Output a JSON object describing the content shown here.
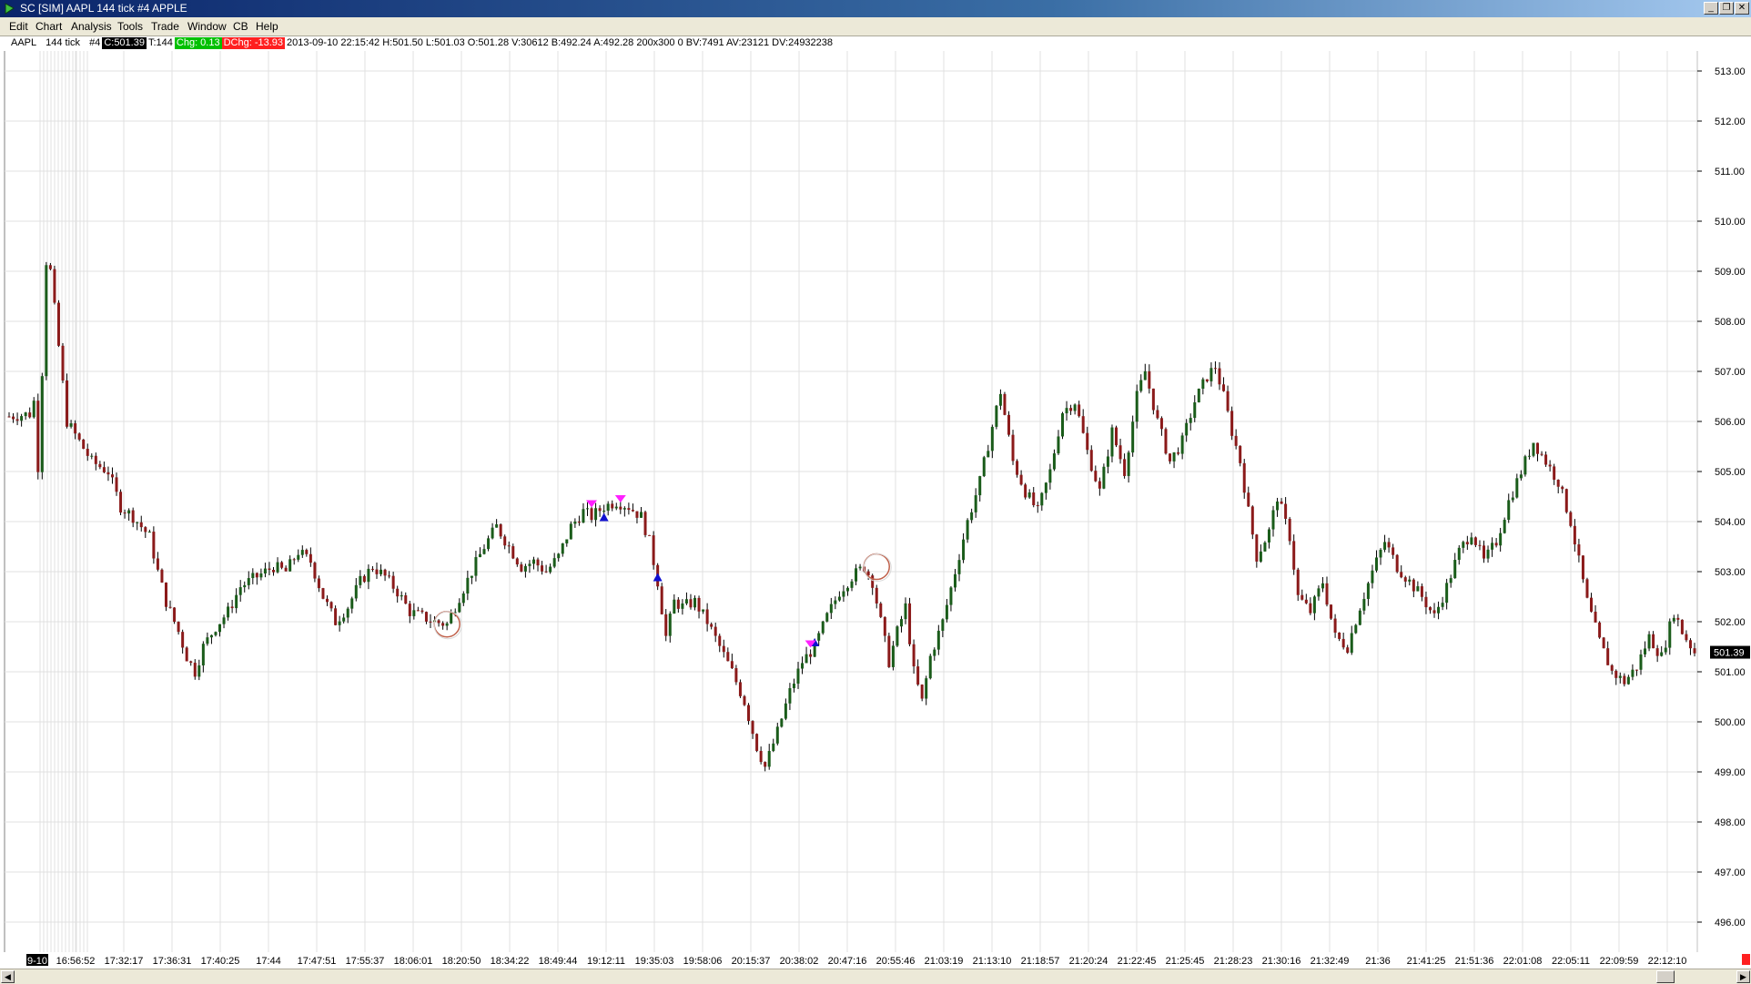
{
  "window": {
    "title": "SC [SIM] AAPL  144 tick  #4  APPLE",
    "controls": {
      "minimize": "_",
      "restore": "❐",
      "close": "✕"
    }
  },
  "menu": [
    "Edit",
    "Chart",
    "Analysis",
    "Tools",
    "Trade",
    "Window",
    "CB",
    "Help"
  ],
  "infobar": {
    "symbol": "AAPL",
    "interval": "144 tick",
    "chart_number": "#4",
    "close": "C:501.39",
    "ticks": "T:144",
    "change": "Chg: 0.13",
    "daily_change": "DChg: -13.93",
    "details": "2013-09-10 22:15:42 H:501.50 L:501.03 O:501.28 V:30612 B:492.24 A:492.28 200x300 0 BV:7491 AV:23121 DV:24932238"
  },
  "colors": {
    "up_bar": "#1a5c1a",
    "down_bar": "#8b1a1a",
    "grid": "#e0e0e0",
    "last_price_bg": "#000000",
    "buy_marker": "#1010d0",
    "sell_marker": "#ff20ff",
    "circle_marker": "#c0604a"
  },
  "chart_data": {
    "type": "candlestick",
    "title": "",
    "ylim": [
      495.4,
      513.4
    ],
    "y_ticks": [
      "513.00",
      "512.00",
      "511.00",
      "510.00",
      "509.00",
      "508.00",
      "507.00",
      "506.00",
      "505.00",
      "504.00",
      "503.00",
      "502.00",
      "501.00",
      "500.00",
      "499.00",
      "498.00",
      "497.00",
      "496.00"
    ],
    "last_price": "501.39",
    "x_first_label": "9-10",
    "x_ticks": [
      "16:56:52",
      "17:32:17",
      "17:36:31",
      "17:40:25",
      "17:44",
      "17:47:51",
      "17:55:37",
      "18:06:01",
      "18:20:50",
      "18:34:22",
      "18:49:44",
      "19:12:11",
      "19:35:03",
      "19:58:06",
      "20:15:37",
      "20:38:02",
      "20:47:16",
      "20:55:46",
      "21:03:19",
      "21:13:10",
      "21:18:57",
      "21:20:24",
      "21:22:45",
      "21:25:45",
      "21:28:23",
      "21:30:16",
      "21:32:49",
      "21:36",
      "21:41:25",
      "21:51:36",
      "22:01:08",
      "22:05:11",
      "22:09:59",
      "22:12:10"
    ],
    "price_path": [
      [
        0,
        506.1
      ],
      [
        5,
        506.15
      ],
      [
        6,
        506.4
      ],
      [
        7,
        505.1
      ],
      [
        8,
        507.0
      ],
      [
        9,
        509.2
      ],
      [
        10,
        509.0
      ],
      [
        12,
        507.5
      ],
      [
        14,
        506.0
      ],
      [
        17,
        505.6
      ],
      [
        20,
        505.2
      ],
      [
        24,
        505.0
      ],
      [
        27,
        504.3
      ],
      [
        30,
        504.1
      ],
      [
        34,
        503.7
      ],
      [
        36,
        503.0
      ],
      [
        38,
        502.4
      ],
      [
        41,
        501.8
      ],
      [
        43,
        501.3
      ],
      [
        45,
        501.0
      ],
      [
        47,
        501.5
      ],
      [
        50,
        501.9
      ],
      [
        53,
        502.2
      ],
      [
        56,
        502.7
      ],
      [
        60,
        502.9
      ],
      [
        64,
        503.1
      ],
      [
        67,
        503.0
      ],
      [
        70,
        503.4
      ],
      [
        73,
        503.2
      ],
      [
        76,
        502.5
      ],
      [
        79,
        502.0
      ],
      [
        82,
        502.3
      ],
      [
        85,
        502.8
      ],
      [
        88,
        503.1
      ],
      [
        91,
        502.9
      ],
      [
        94,
        502.6
      ],
      [
        97,
        502.2
      ],
      [
        100,
        502.1
      ],
      [
        103,
        502.0
      ],
      [
        106,
        501.95
      ],
      [
        109,
        502.5
      ],
      [
        112,
        503.0
      ],
      [
        115,
        503.5
      ],
      [
        118,
        503.9
      ],
      [
        121,
        503.5
      ],
      [
        124,
        503.1
      ],
      [
        127,
        503.2
      ],
      [
        130,
        503.0
      ],
      [
        133,
        503.3
      ],
      [
        136,
        503.9
      ],
      [
        139,
        504.2
      ],
      [
        141,
        504.1
      ],
      [
        144,
        504.3
      ],
      [
        147,
        504.4
      ],
      [
        150,
        504.3
      ],
      [
        153,
        504.1
      ],
      [
        155,
        503.6
      ],
      [
        157,
        502.8
      ],
      [
        159,
        501.7
      ],
      [
        161,
        502.4
      ],
      [
        163,
        502.3
      ],
      [
        166,
        502.4
      ],
      [
        169,
        502.0
      ],
      [
        172,
        501.5
      ],
      [
        175,
        501.0
      ],
      [
        178,
        500.4
      ],
      [
        181,
        499.5
      ],
      [
        183,
        499.1
      ],
      [
        186,
        499.8
      ],
      [
        189,
        500.6
      ],
      [
        192,
        501.2
      ],
      [
        195,
        501.5
      ],
      [
        198,
        502.1
      ],
      [
        201,
        502.6
      ],
      [
        204,
        502.9
      ],
      [
        207,
        503.1
      ],
      [
        209,
        502.8
      ],
      [
        211,
        502.0
      ],
      [
        213,
        501.2
      ],
      [
        215,
        501.8
      ],
      [
        217,
        502.3
      ],
      [
        219,
        501.0
      ],
      [
        221,
        500.4
      ],
      [
        223,
        501.3
      ],
      [
        226,
        502.0
      ],
      [
        229,
        503.0
      ],
      [
        232,
        504.0
      ],
      [
        235,
        504.8
      ],
      [
        238,
        505.9
      ],
      [
        240,
        506.6
      ],
      [
        243,
        505.2
      ],
      [
        246,
        504.6
      ],
      [
        249,
        504.2
      ],
      [
        252,
        505.0
      ],
      [
        255,
        506.2
      ],
      [
        258,
        506.4
      ],
      [
        261,
        505.4
      ],
      [
        264,
        504.6
      ],
      [
        267,
        505.8
      ],
      [
        270,
        505.0
      ],
      [
        273,
        506.5
      ],
      [
        275,
        507.0
      ],
      [
        278,
        506.0
      ],
      [
        281,
        505.2
      ],
      [
        284,
        505.6
      ],
      [
        287,
        506.4
      ],
      [
        290,
        506.9
      ],
      [
        292,
        507.1
      ],
      [
        294,
        506.5
      ],
      [
        296,
        505.8
      ],
      [
        298,
        505.2
      ],
      [
        300,
        504.2
      ],
      [
        302,
        503.3
      ],
      [
        305,
        503.8
      ],
      [
        307,
        504.5
      ],
      [
        310,
        503.7
      ],
      [
        312,
        502.5
      ],
      [
        315,
        502.2
      ],
      [
        318,
        502.8
      ],
      [
        321,
        501.7
      ],
      [
        324,
        501.5
      ],
      [
        327,
        502.3
      ],
      [
        330,
        503.0
      ],
      [
        333,
        503.6
      ],
      [
        336,
        503.1
      ],
      [
        339,
        502.8
      ],
      [
        342,
        502.5
      ],
      [
        345,
        502.1
      ],
      [
        348,
        502.7
      ],
      [
        351,
        503.4
      ],
      [
        354,
        503.8
      ],
      [
        357,
        503.2
      ],
      [
        360,
        503.6
      ],
      [
        363,
        504.4
      ],
      [
        366,
        505.0
      ],
      [
        369,
        505.6
      ],
      [
        372,
        505.2
      ],
      [
        375,
        504.8
      ],
      [
        378,
        504.0
      ],
      [
        380,
        503.2
      ],
      [
        382,
        502.4
      ],
      [
        385,
        501.6
      ],
      [
        388,
        501.0
      ],
      [
        391,
        500.8
      ],
      [
        394,
        501.1
      ],
      [
        397,
        501.7
      ],
      [
        400,
        501.3
      ],
      [
        403,
        502.2
      ],
      [
        405,
        501.8
      ],
      [
        408,
        501.39
      ]
    ],
    "markers": {
      "buy_arrows": [
        [
          144,
          504.1
        ],
        [
          157,
          502.9
        ],
        [
          195,
          501.6
        ]
      ],
      "sell_arrows": [
        [
          141,
          504.3
        ],
        [
          148,
          504.4
        ],
        [
          194,
          501.5
        ]
      ],
      "circles": [
        [
          106,
          501.95
        ],
        [
          210,
          503.1
        ]
      ]
    }
  }
}
